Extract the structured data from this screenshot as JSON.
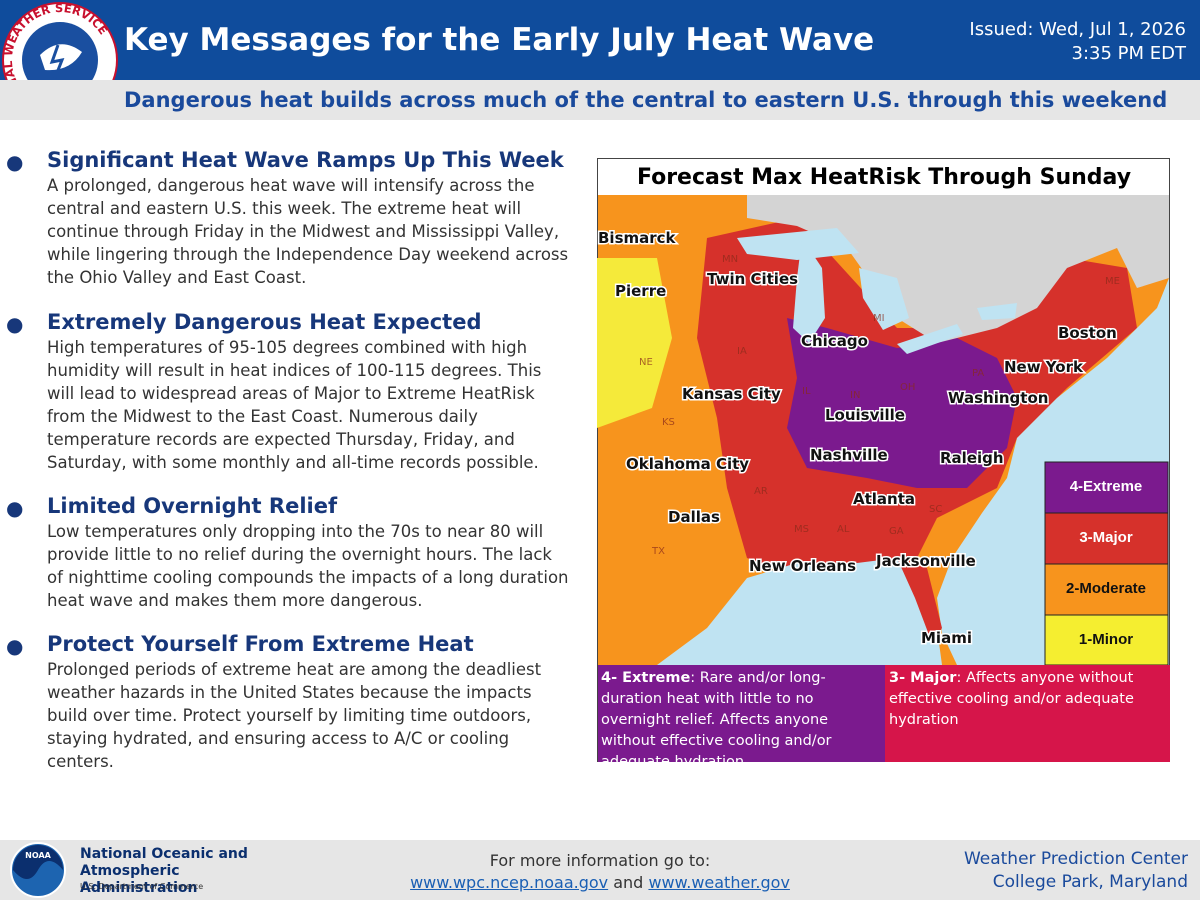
{
  "header": {
    "logo_ring": "NATIONAL WEATHER SERVICE",
    "title": "Key Messages for the Early July Heat Wave",
    "issued": "Issued: Wed, Jul 1, 2026",
    "issued_time": "3:35 PM EDT",
    "subtitle": "Dangerous heat builds across much of the central to eastern U.S. through this weekend"
  },
  "messages": [
    {
      "heading": "Significant Heat Wave Ramps Up This Week",
      "body": "A prolonged, dangerous heat wave will intensify across the central and eastern U.S. this week. The extreme heat will continue through Friday in the Midwest and Mississippi Valley, while lingering through the Independence Day weekend across the Ohio Valley and East Coast."
    },
    {
      "heading": "Extremely Dangerous Heat Expected",
      "body": "High temperatures of 95-105 degrees combined with high humidity will result in heat indices of 100-115 degrees. This will lead to widespread areas of Major to Extreme HeatRisk from the Midwest to the East Coast. Numerous daily temperature records are expected Thursday, Friday, and Saturday, with some monthly and all-time records possible."
    },
    {
      "heading": "Limited Overnight Relief",
      "body": "Low temperatures only dropping into the 70s to near 80 will provide little to no relief during the overnight hours. The lack of nighttime cooling compounds the impacts of a long duration heat wave and makes them more dangerous."
    },
    {
      "heading": "Protect Yourself From Extreme Heat",
      "body": "Prolonged periods of extreme heat are among the deadliest weather hazards in the United States because the impacts build over time. Protect yourself by limiting time outdoors, staying hydrated, and ensuring access to A/C or cooling centers."
    }
  ],
  "map": {
    "title": "Forecast Max HeatRisk Through Sunday",
    "cities": [
      "Bismarck",
      "Twin Cities",
      "Pierre",
      "Chicago",
      "Boston",
      "New York",
      "Kansas City",
      "Washington",
      "Louisville",
      "Nashville",
      "Raleigh",
      "Oklahoma City",
      "Atlanta",
      "Dallas",
      "New Orleans",
      "Jacksonville",
      "Miami"
    ],
    "states": [
      "MN",
      "NE",
      "KS",
      "IA",
      "IL",
      "IN",
      "OH",
      "PA",
      "ME",
      "AR",
      "MS",
      "AL",
      "GA",
      "SC",
      "TX",
      "MI"
    ],
    "legend": [
      "4-Extreme",
      "3-Major",
      "2-Moderate",
      "1-Minor"
    ],
    "descriptions": [
      {
        "term": "4- Extreme",
        "text": ": Rare and/or long-duration heat with little to no overnight relief. Affects anyone without effective cooling and/or adequate hydration."
      },
      {
        "term": "3- Major",
        "text": ": Affects anyone without effective cooling and/or adequate hydration"
      }
    ]
  },
  "footer": {
    "noaa_logo": "NOAA",
    "noaa_name": "National Oceanic and Atmospheric Administration",
    "noaa_dept": "U.S. Department of Commerce",
    "info": "For more information go to:",
    "link1": "www.wpc.ncep.noaa.gov",
    "and": "and",
    "link2": "www.weather.gov",
    "center": "Weather Prediction Center",
    "place": "College Park, Maryland"
  }
}
